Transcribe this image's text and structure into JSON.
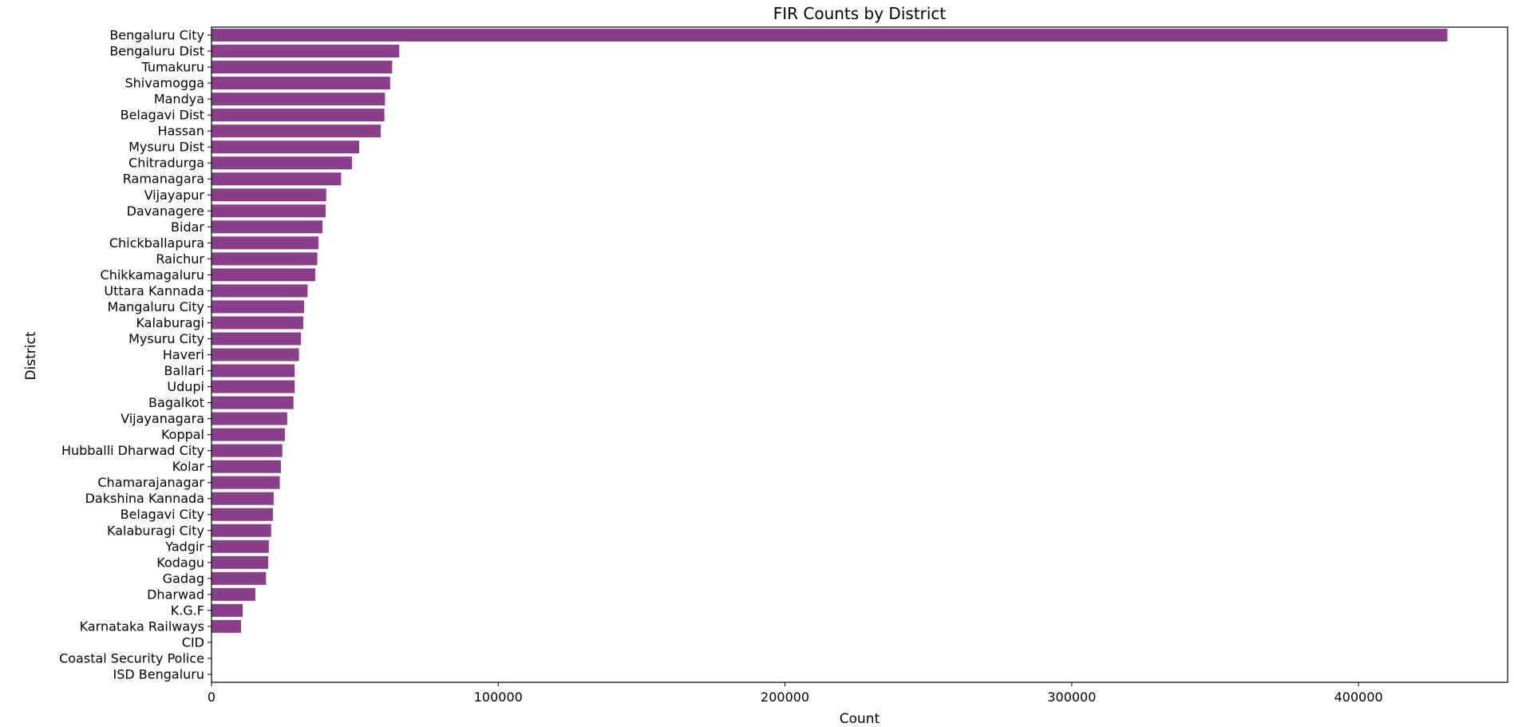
{
  "chart_data": {
    "type": "bar",
    "orientation": "horizontal",
    "title": "FIR Counts by District",
    "xlabel": "Count",
    "ylabel": "District",
    "xlim": [
      0,
      452000
    ],
    "xticks": [
      0,
      100000,
      200000,
      300000,
      400000
    ],
    "grid": false,
    "bar_color": "#8B3F8B",
    "categories": [
      "Bengaluru City",
      "Bengaluru Dist",
      "Tumakuru",
      "Shivamogga",
      "Mandya",
      "Belagavi Dist",
      "Hassan",
      "Mysuru Dist",
      "Chitradurga",
      "Ramanagara",
      "Vijayapur",
      "Davanagere",
      "Bidar",
      "Chickballapura",
      "Raichur",
      "Chikkamagaluru",
      "Uttara Kannada",
      "Mangaluru City",
      "Kalaburagi",
      "Mysuru City",
      "Haveri",
      "Ballari",
      "Udupi",
      "Bagalkot",
      "Vijayanagara",
      "Koppal",
      "Hubballi Dharwad City",
      "Kolar",
      "Chamarajanagar",
      "Dakshina Kannada",
      "Belagavi City",
      "Kalaburagi City",
      "Yadgir",
      "Kodagu",
      "Gadag",
      "Dharwad",
      "K.G.F",
      "Karnataka Railways",
      "CID",
      "Coastal Security Police",
      "ISD Bengaluru"
    ],
    "values": [
      431000,
      65500,
      63000,
      62300,
      60500,
      60300,
      59000,
      51500,
      49000,
      45200,
      40000,
      39800,
      38700,
      37300,
      36900,
      36200,
      33500,
      32300,
      32000,
      31200,
      30500,
      29000,
      29000,
      28600,
      26400,
      25600,
      24700,
      24200,
      23800,
      21700,
      21400,
      20800,
      20000,
      19800,
      19000,
      15300,
      10900,
      10300,
      0,
      0,
      0
    ]
  }
}
